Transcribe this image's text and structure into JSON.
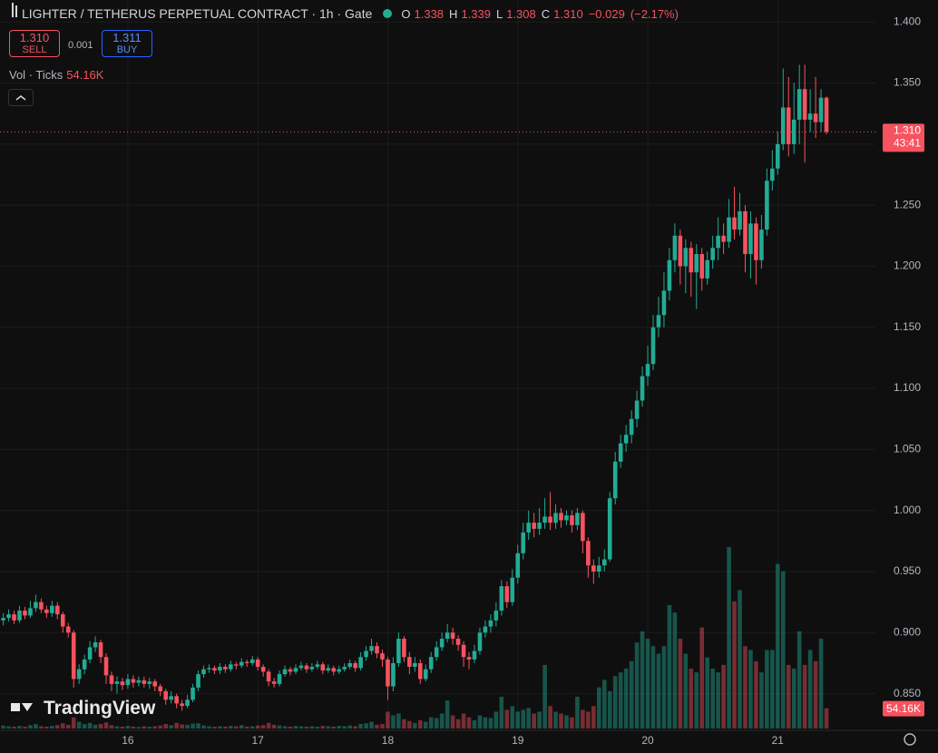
{
  "header": {
    "title": "LIGHTER / TETHERUS PERPETUAL CONTRACT · 1h · Gate",
    "ohlc_letters": [
      "O",
      "H",
      "L",
      "C"
    ],
    "ohlc": [
      {
        "value": 1.338,
        "label": "1.338"
      },
      {
        "value": 1.339,
        "label": "1.339"
      },
      {
        "value": 1.308,
        "label": "1.308"
      },
      {
        "value": 1.31,
        "label": "1.310"
      }
    ],
    "change": {
      "value": -0.029,
      "label": "−0.029"
    },
    "change_pct": {
      "value": -2.17,
      "label": "(−2.17%)"
    }
  },
  "trade": {
    "sell_price": {
      "value": 1.31,
      "label": "1.310"
    },
    "sell": "SELL",
    "spread": 0.001,
    "buy_price": {
      "value": 1.311,
      "label": "1.311"
    },
    "buy": "BUY"
  },
  "volume_legend": "Vol · Ticks",
  "watermark": "TradingView",
  "chart_data": {
    "type": "candlestick",
    "up_color": "#22ab94",
    "down_color": "#f7525f",
    "open": [
      0.91,
      0.912,
      0.915,
      0.91,
      0.918,
      0.914,
      0.92,
      0.925,
      0.919,
      0.916,
      0.922,
      0.915,
      0.905,
      0.9,
      0.862,
      0.87,
      0.878,
      0.888,
      0.892,
      0.88,
      0.865,
      0.858,
      0.86,
      0.857,
      0.862,
      0.859,
      0.861,
      0.858,
      0.86,
      0.856,
      0.852,
      0.845,
      0.848,
      0.842,
      0.84,
      0.845,
      0.855,
      0.866,
      0.87,
      0.871,
      0.869,
      0.872,
      0.87,
      0.874,
      0.873,
      0.876,
      0.875,
      0.878,
      0.872,
      0.868,
      0.86,
      0.858,
      0.866,
      0.87,
      0.868,
      0.871,
      0.873,
      0.87,
      0.872,
      0.874,
      0.869,
      0.871,
      0.868,
      0.87,
      0.872,
      0.875,
      0.871,
      0.88,
      0.885,
      0.889,
      0.883,
      0.878,
      0.856,
      0.875,
      0.895,
      0.88,
      0.872,
      0.875,
      0.862,
      0.87,
      0.88,
      0.888,
      0.895,
      0.9,
      0.895,
      0.89,
      0.88,
      0.878,
      0.885,
      0.9,
      0.905,
      0.91,
      0.918,
      0.938,
      0.925,
      0.945,
      0.965,
      0.982,
      0.99,
      0.985,
      0.99,
      0.995,
      0.99,
      0.998,
      0.992,
      0.996,
      0.988,
      0.998,
      0.975,
      0.955,
      0.95,
      0.955,
      0.96,
      1.01,
      1.04,
      1.055,
      1.062,
      1.075,
      1.09,
      1.11,
      1.12,
      1.15,
      1.16,
      1.18,
      1.205,
      1.225,
      1.2,
      1.215,
      1.195,
      1.21,
      1.19,
      1.205,
      1.215,
      1.225,
      1.22,
      1.24,
      1.23,
      1.245,
      1.21,
      1.235,
      1.205,
      1.23,
      1.27,
      1.28,
      1.3,
      1.33,
      1.3,
      1.32,
      1.345,
      1.32,
      1.325,
      1.318,
      1.338
    ],
    "high": [
      0.916,
      0.919,
      0.918,
      0.922,
      0.921,
      0.926,
      0.931,
      0.928,
      0.922,
      0.926,
      0.925,
      0.917,
      0.908,
      0.902,
      0.874,
      0.882,
      0.893,
      0.897,
      0.894,
      0.883,
      0.868,
      0.864,
      0.863,
      0.866,
      0.865,
      0.864,
      0.864,
      0.863,
      0.862,
      0.858,
      0.854,
      0.852,
      0.85,
      0.845,
      0.849,
      0.858,
      0.869,
      0.873,
      0.874,
      0.873,
      0.875,
      0.874,
      0.877,
      0.876,
      0.879,
      0.878,
      0.881,
      0.88,
      0.874,
      0.87,
      0.863,
      0.869,
      0.873,
      0.872,
      0.874,
      0.876,
      0.875,
      0.875,
      0.877,
      0.876,
      0.874,
      0.873,
      0.873,
      0.875,
      0.878,
      0.877,
      0.884,
      0.889,
      0.895,
      0.892,
      0.886,
      0.88,
      0.88,
      0.9,
      0.897,
      0.884,
      0.88,
      0.878,
      0.874,
      0.884,
      0.893,
      0.9,
      0.907,
      0.904,
      0.898,
      0.893,
      0.884,
      0.89,
      0.904,
      0.91,
      0.915,
      0.925,
      0.943,
      0.942,
      0.952,
      0.972,
      0.99,
      1.0,
      0.998,
      1.002,
      1.01,
      1.015,
      1.005,
      1.002,
      1.0,
      1.0,
      1.002,
      1.0,
      0.978,
      0.96,
      0.962,
      0.968,
      1.015,
      1.048,
      1.062,
      1.07,
      1.082,
      1.098,
      1.118,
      1.135,
      1.16,
      1.175,
      1.195,
      1.215,
      1.235,
      1.23,
      1.222,
      1.22,
      1.218,
      1.215,
      1.212,
      1.225,
      1.24,
      1.235,
      1.255,
      1.265,
      1.26,
      1.25,
      1.245,
      1.24,
      1.242,
      1.28,
      1.295,
      1.31,
      1.362,
      1.355,
      1.35,
      1.365,
      1.365,
      1.345,
      1.355,
      1.345,
      1.339
    ],
    "low": [
      0.906,
      0.909,
      0.907,
      0.908,
      0.911,
      0.912,
      0.917,
      0.916,
      0.912,
      0.913,
      0.911,
      0.9,
      0.896,
      0.855,
      0.858,
      0.866,
      0.875,
      0.884,
      0.875,
      0.858,
      0.852,
      0.85,
      0.853,
      0.854,
      0.855,
      0.856,
      0.855,
      0.854,
      0.852,
      0.848,
      0.841,
      0.842,
      0.838,
      0.836,
      0.838,
      0.843,
      0.852,
      0.863,
      0.867,
      0.866,
      0.866,
      0.867,
      0.868,
      0.87,
      0.871,
      0.872,
      0.873,
      0.869,
      0.864,
      0.856,
      0.855,
      0.856,
      0.864,
      0.865,
      0.866,
      0.869,
      0.867,
      0.868,
      0.87,
      0.866,
      0.867,
      0.865,
      0.866,
      0.868,
      0.87,
      0.868,
      0.869,
      0.877,
      0.882,
      0.879,
      0.872,
      0.845,
      0.852,
      0.872,
      0.876,
      0.866,
      0.868,
      0.858,
      0.86,
      0.867,
      0.877,
      0.885,
      0.892,
      0.89,
      0.885,
      0.872,
      0.87,
      0.875,
      0.882,
      0.896,
      0.9,
      0.905,
      0.914,
      0.92,
      0.922,
      0.94,
      0.96,
      0.976,
      0.978,
      0.98,
      0.985,
      0.984,
      0.985,
      0.986,
      0.988,
      0.982,
      0.984,
      0.965,
      0.945,
      0.94,
      0.945,
      0.95,
      0.958,
      1.005,
      1.035,
      1.048,
      1.055,
      1.068,
      1.085,
      1.102,
      1.115,
      1.142,
      1.15,
      1.172,
      1.195,
      1.185,
      1.178,
      1.175,
      1.165,
      1.18,
      1.185,
      1.198,
      1.205,
      1.21,
      1.215,
      1.222,
      1.225,
      1.195,
      1.19,
      1.185,
      1.198,
      1.225,
      1.262,
      1.275,
      1.295,
      1.29,
      1.292,
      1.3,
      1.285,
      1.31,
      1.305,
      1.31,
      1.308
    ],
    "close": [
      0.912,
      0.915,
      0.91,
      0.918,
      0.914,
      0.92,
      0.925,
      0.919,
      0.916,
      0.922,
      0.915,
      0.905,
      0.9,
      0.862,
      0.87,
      0.878,
      0.888,
      0.892,
      0.88,
      0.865,
      0.858,
      0.86,
      0.857,
      0.862,
      0.859,
      0.861,
      0.858,
      0.86,
      0.856,
      0.852,
      0.845,
      0.848,
      0.842,
      0.84,
      0.845,
      0.855,
      0.866,
      0.87,
      0.871,
      0.869,
      0.872,
      0.87,
      0.874,
      0.873,
      0.876,
      0.875,
      0.878,
      0.872,
      0.868,
      0.86,
      0.858,
      0.866,
      0.87,
      0.868,
      0.871,
      0.873,
      0.87,
      0.872,
      0.874,
      0.869,
      0.871,
      0.868,
      0.87,
      0.872,
      0.875,
      0.871,
      0.88,
      0.885,
      0.889,
      0.883,
      0.878,
      0.856,
      0.875,
      0.895,
      0.88,
      0.872,
      0.875,
      0.862,
      0.87,
      0.88,
      0.888,
      0.895,
      0.9,
      0.895,
      0.89,
      0.88,
      0.878,
      0.885,
      0.9,
      0.905,
      0.91,
      0.918,
      0.938,
      0.925,
      0.945,
      0.965,
      0.982,
      0.99,
      0.985,
      0.99,
      0.995,
      0.99,
      0.998,
      0.992,
      0.996,
      0.988,
      0.998,
      0.975,
      0.955,
      0.95,
      0.955,
      0.96,
      1.01,
      1.04,
      1.055,
      1.062,
      1.075,
      1.09,
      1.11,
      1.12,
      1.15,
      1.16,
      1.18,
      1.205,
      1.225,
      1.2,
      1.215,
      1.195,
      1.21,
      1.19,
      1.205,
      1.215,
      1.225,
      1.22,
      1.24,
      1.23,
      1.245,
      1.21,
      1.235,
      1.205,
      1.23,
      1.27,
      1.28,
      1.3,
      1.33,
      1.3,
      1.32,
      1.345,
      1.32,
      1.325,
      1.318,
      1.338,
      1.31
    ],
    "volume": [
      8000,
      6000,
      5000,
      7000,
      5000,
      9000,
      12000,
      6000,
      5000,
      7000,
      9000,
      14000,
      10000,
      30000,
      18000,
      12000,
      15000,
      10000,
      12000,
      16000,
      9000,
      6000,
      5000,
      7000,
      5000,
      4000,
      6000,
      5000,
      6000,
      8000,
      12000,
      9000,
      15000,
      11000,
      10000,
      13000,
      14000,
      8000,
      6000,
      5000,
      6000,
      5000,
      7000,
      6000,
      9000,
      5000,
      6000,
      8000,
      9000,
      15000,
      10000,
      8000,
      6000,
      5000,
      7000,
      6000,
      5000,
      6000,
      5000,
      7000,
      6000,
      5000,
      7000,
      6000,
      8000,
      6000,
      12000,
      14000,
      18000,
      10000,
      12000,
      45000,
      35000,
      40000,
      25000,
      20000,
      15000,
      22000,
      18000,
      30000,
      28000,
      40000,
      75000,
      35000,
      25000,
      40000,
      30000,
      22000,
      35000,
      30000,
      28000,
      45000,
      85000,
      50000,
      60000,
      45000,
      50000,
      55000,
      40000,
      45000,
      170000,
      60000,
      45000,
      40000,
      35000,
      30000,
      85000,
      50000,
      45000,
      60000,
      110000,
      130000,
      100000,
      140000,
      150000,
      160000,
      180000,
      230000,
      260000,
      240000,
      220000,
      200000,
      220000,
      330000,
      310000,
      240000,
      200000,
      160000,
      150000,
      270000,
      190000,
      160000,
      150000,
      170000,
      485000,
      340000,
      370000,
      220000,
      210000,
      180000,
      150000,
      210000,
      210000,
      440000,
      420000,
      170000,
      160000,
      260000,
      170000,
      210000,
      180000,
      240000,
      54160
    ],
    "volume_value_labels": {
      "152": "54.16K"
    },
    "ylim": [
      0.82,
      1.418
    ],
    "yticks": [
      {
        "value": 0.85,
        "label": "0.850"
      },
      {
        "value": 0.9,
        "label": "0.900"
      },
      {
        "value": 0.95,
        "label": "0.950"
      },
      {
        "value": 1.0,
        "label": "1.000"
      },
      {
        "value": 1.05,
        "label": "1.050"
      },
      {
        "value": 1.1,
        "label": "1.100"
      },
      {
        "value": 1.15,
        "label": "1.150"
      },
      {
        "value": 1.2,
        "label": "1.200"
      },
      {
        "value": 1.25,
        "label": "1.250"
      },
      {
        "value": 1.3,
        "label": "1.300"
      },
      {
        "value": 1.35,
        "label": "1.350"
      },
      {
        "value": 1.4,
        "label": "1.400"
      }
    ],
    "xticks": [
      {
        "value": 23,
        "label": "16"
      },
      {
        "value": 47,
        "label": "17"
      },
      {
        "value": 71,
        "label": "18"
      },
      {
        "value": 95,
        "label": "19"
      },
      {
        "value": 119,
        "label": "20"
      },
      {
        "value": 143,
        "label": "21"
      }
    ],
    "last_price": {
      "value": 1.31,
      "label": "1.310"
    },
    "countdown": "43:41",
    "grid": true
  }
}
